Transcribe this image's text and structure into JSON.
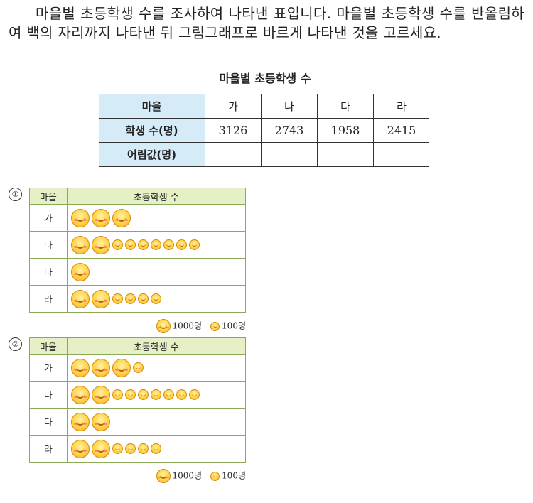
{
  "problem_text": "마을별 초등학생 수를 조사하여 나타낸 표입니다. 마을별 초등학생 수를 반올림하여 백의 자리까지 나타낸 뒤 그림그래프로 바르게 나타낸 것을 고르세요.",
  "table": {
    "title": "마을별 초등학생 수",
    "header_label": "마을",
    "villages": [
      "가",
      "나",
      "다",
      "라"
    ],
    "students_label": "학생 수(명)",
    "students": [
      "3126",
      "2743",
      "1958",
      "2415"
    ],
    "rounded_label": "어림값(명)",
    "rounded": [
      "",
      "",
      "",
      ""
    ]
  },
  "options": [
    {
      "number": "①",
      "col_village": "마을",
      "col_count": "초등학생 수",
      "rows": [
        {
          "village": "가",
          "big": 3,
          "small": 0
        },
        {
          "village": "나",
          "big": 2,
          "small": 7
        },
        {
          "village": "다",
          "big": 1,
          "small": 0
        },
        {
          "village": "라",
          "big": 2,
          "small": 4
        }
      ],
      "legend_big": "1000명",
      "legend_small": "100명"
    },
    {
      "number": "②",
      "col_village": "마을",
      "col_count": "초등학생 수",
      "rows": [
        {
          "village": "가",
          "big": 3,
          "small": 1
        },
        {
          "village": "나",
          "big": 2,
          "small": 7
        },
        {
          "village": "다",
          "big": 2,
          "small": 0
        },
        {
          "village": "라",
          "big": 2,
          "small": 4
        }
      ],
      "legend_big": "1000명",
      "legend_small": "100명"
    }
  ]
}
